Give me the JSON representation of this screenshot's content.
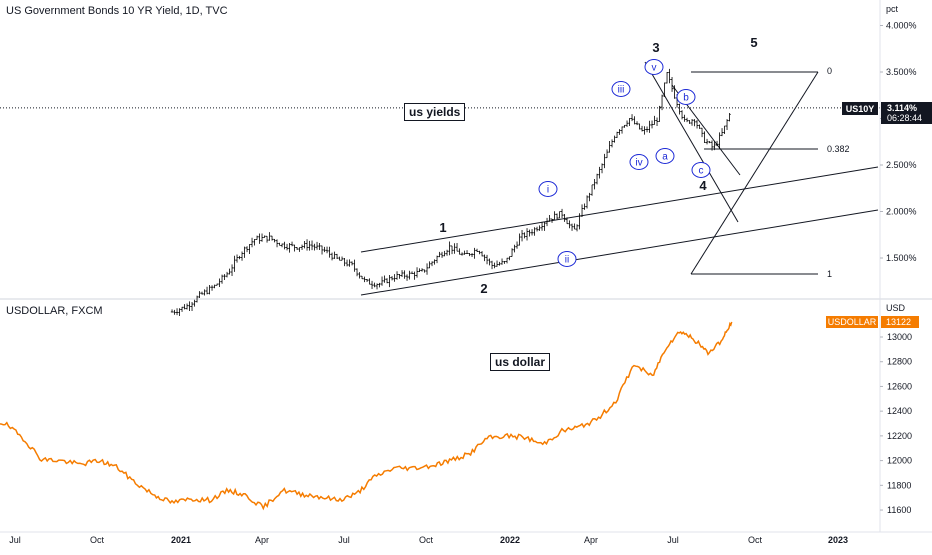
{
  "top_pane": {
    "title": "US Government Bonds 10 YR Yield, 1D, TVC",
    "unit": "pct",
    "price_ticks": [
      "4.000%",
      "3.500%",
      "3.000%",
      "2.500%",
      "2.000%",
      "1.500%"
    ],
    "current_label_symbol": "US10Y",
    "current_value_text": "3.114%",
    "countdown_text": "06:28:44",
    "annotation": "us yields",
    "wave_labels_major": [
      "1",
      "2",
      "3",
      "4",
      "5"
    ],
    "wave_labels_minor": [
      "i",
      "ii",
      "iii",
      "iv",
      "v",
      "a",
      "b",
      "c"
    ],
    "fib_labels": [
      "0",
      "0.382",
      "1"
    ]
  },
  "bottom_pane": {
    "title": "USDOLLAR, FXCM",
    "unit": "USD",
    "price_ticks": [
      "13000",
      "12800",
      "12600",
      "12400",
      "12200",
      "12000",
      "11800",
      "11600"
    ],
    "current_label_symbol": "USDOLLAR",
    "current_value_text": "13122",
    "annotation": "us dollar"
  },
  "time_axis": {
    "labels": [
      "Jul",
      "Oct",
      "2021",
      "Apr",
      "Jul",
      "Oct",
      "2022",
      "Apr",
      "Jul",
      "Oct",
      "2023"
    ]
  },
  "colors": {
    "candle": "#000000",
    "usd_line": "#f57c00",
    "label_bg": "#131722",
    "usd_label_bg": "#f57c00",
    "elliott_circle": "#1e2bd6",
    "axis_text": "#131722",
    "grid_line": "#e0e3eb"
  },
  "chart_data": [
    {
      "type": "line",
      "title": "US Government Bonds 10 YR Yield, 1D, TVC",
      "ylabel": "pct",
      "ylim": [
        1.0,
        4.0
      ],
      "x_ticks": [
        "Jul",
        "Oct",
        "2021",
        "Apr",
        "Jul",
        "Oct",
        "2022",
        "Apr",
        "Jul",
        "Oct",
        "2023"
      ],
      "series": [
        {
          "name": "US10Y",
          "x": [
            "2020-12-20",
            "2021-01-05",
            "2021-01-20",
            "2021-02-05",
            "2021-02-20",
            "2021-03-05",
            "2021-03-20",
            "2021-04-05",
            "2021-04-20",
            "2021-05-05",
            "2021-05-20",
            "2021-06-05",
            "2021-06-20",
            "2021-07-05",
            "2021-07-20",
            "2021-08-05",
            "2021-08-20",
            "2021-09-05",
            "2021-09-20",
            "2021-10-05",
            "2021-10-20",
            "2021-11-05",
            "2021-11-20",
            "2021-12-05",
            "2021-12-20",
            "2022-01-05",
            "2022-01-20",
            "2022-02-05",
            "2022-02-20",
            "2022-03-05",
            "2022-03-20",
            "2022-04-05",
            "2022-04-20",
            "2022-05-05",
            "2022-05-20",
            "2022-06-05",
            "2022-06-15",
            "2022-06-25",
            "2022-07-05",
            "2022-07-15",
            "2022-07-25",
            "2022-08-05",
            "2022-08-15",
            "2022-08-25"
          ],
          "values": [
            0.92,
            0.98,
            1.1,
            1.2,
            1.35,
            1.55,
            1.7,
            1.72,
            1.64,
            1.62,
            1.64,
            1.58,
            1.48,
            1.42,
            1.24,
            1.22,
            1.3,
            1.32,
            1.35,
            1.5,
            1.62,
            1.52,
            1.6,
            1.42,
            1.45,
            1.72,
            1.8,
            1.92,
            1.98,
            1.78,
            2.15,
            2.5,
            2.85,
            3.0,
            2.85,
            3.0,
            3.48,
            3.2,
            2.95,
            3.0,
            2.78,
            2.68,
            2.85,
            3.1
          ]
        }
      ]
    },
    {
      "type": "line",
      "title": "USDOLLAR, FXCM",
      "ylabel": "USD",
      "ylim": [
        11500,
        13130
      ],
      "x_ticks": [
        "Jul",
        "Oct",
        "2021",
        "Apr",
        "Jul",
        "Oct",
        "2022",
        "Apr",
        "Jul",
        "Oct",
        "2023"
      ],
      "series": [
        {
          "name": "USDOLLAR",
          "x": [
            "2020-06-01",
            "2020-06-20",
            "2020-07-10",
            "2020-07-30",
            "2020-08-20",
            "2020-09-10",
            "2020-10-01",
            "2020-10-20",
            "2020-11-10",
            "2020-12-01",
            "2020-12-20",
            "2021-01-10",
            "2021-01-30",
            "2021-02-20",
            "2021-03-10",
            "2021-03-30",
            "2021-04-20",
            "2021-05-10",
            "2021-05-30",
            "2021-06-20",
            "2021-07-10",
            "2021-07-30",
            "2021-08-20",
            "2021-09-10",
            "2021-10-01",
            "2021-10-20",
            "2021-11-10",
            "2021-11-30",
            "2021-12-20",
            "2022-01-10",
            "2022-01-30",
            "2022-02-20",
            "2022-03-10",
            "2022-03-30",
            "2022-04-20",
            "2022-05-10",
            "2022-05-30",
            "2022-06-15",
            "2022-06-30",
            "2022-07-15",
            "2022-07-30",
            "2022-08-15",
            "2022-08-25"
          ],
          "values": [
            12330,
            12300,
            12180,
            12010,
            12000,
            11970,
            12000,
            11950,
            11820,
            11720,
            11660,
            11690,
            11680,
            11760,
            11720,
            11620,
            11760,
            11730,
            11710,
            11680,
            11730,
            11870,
            11940,
            11940,
            11960,
            12000,
            12050,
            12180,
            12200,
            12190,
            12130,
            12240,
            12270,
            12330,
            12480,
            12780,
            12680,
            12930,
            13050,
            12980,
            12870,
            12980,
            13122
          ]
        }
      ]
    }
  ]
}
